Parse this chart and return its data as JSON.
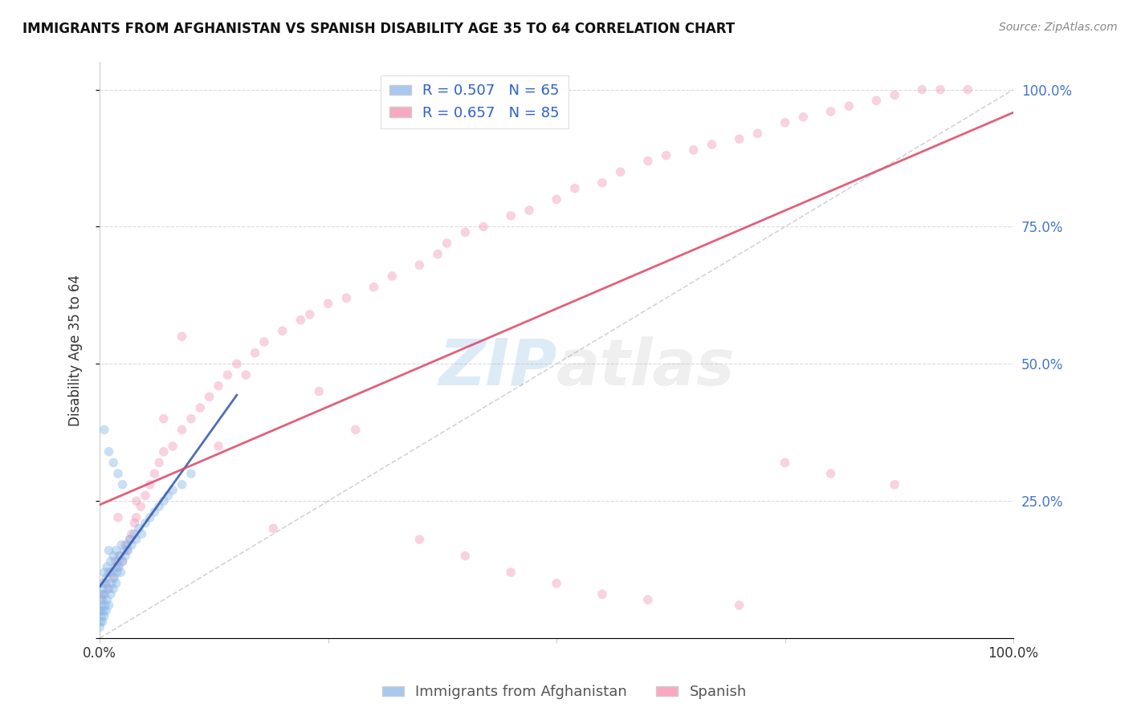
{
  "title": "IMMIGRANTS FROM AFGHANISTAN VS SPANISH DISABILITY AGE 35 TO 64 CORRELATION CHART",
  "source": "Source: ZipAtlas.com",
  "ylabel": "Disability Age 35 to 64",
  "legend_entries": [
    {
      "label": "R = 0.507   N = 65",
      "color": "#a8c8f0"
    },
    {
      "label": "R = 0.657   N = 85",
      "color": "#f9a8c0"
    }
  ],
  "legend_bottom": [
    "Immigrants from Afghanistan",
    "Spanish"
  ],
  "watermark": "ZIPatlas",
  "background_color": "#ffffff",
  "grid_color": "#cccccc",
  "scatter_afghanistan": {
    "color": "#88b8e8",
    "alpha": 0.45,
    "size": 70
  },
  "scatter_spanish": {
    "color": "#f090b0",
    "alpha": 0.4,
    "size": 70
  },
  "trend_afghanistan": {
    "color": "#3355aa",
    "style": "-",
    "alpha": 0.85,
    "linewidth": 2.0
  },
  "trend_spanish": {
    "color": "#dd4466",
    "style": "-",
    "alpha": 0.85,
    "linewidth": 2.0
  },
  "trend_diagonal": {
    "color": "#aaaaaa",
    "style": "--",
    "alpha": 0.5,
    "linewidth": 1.2
  },
  "R_afg": 0.507,
  "N_afg": 65,
  "R_spa": 0.657,
  "N_spa": 85,
  "xmin": 0.0,
  "xmax": 1.0,
  "ymin": 0.0,
  "ymax": 1.05,
  "afg_x": [
    0.0,
    0.001,
    0.001,
    0.002,
    0.002,
    0.002,
    0.003,
    0.003,
    0.003,
    0.004,
    0.004,
    0.005,
    0.005,
    0.005,
    0.006,
    0.006,
    0.007,
    0.007,
    0.008,
    0.008,
    0.009,
    0.01,
    0.01,
    0.01,
    0.012,
    0.012,
    0.013,
    0.014,
    0.015,
    0.015,
    0.016,
    0.017,
    0.018,
    0.018,
    0.019,
    0.02,
    0.021,
    0.022,
    0.023,
    0.024,
    0.025,
    0.027,
    0.028,
    0.03,
    0.031,
    0.033,
    0.035,
    0.038,
    0.04,
    0.043,
    0.046,
    0.05,
    0.055,
    0.06,
    0.065,
    0.07,
    0.075,
    0.08,
    0.09,
    0.1,
    0.005,
    0.01,
    0.015,
    0.02,
    0.025
  ],
  "afg_y": [
    0.02,
    0.03,
    0.05,
    0.04,
    0.06,
    0.08,
    0.03,
    0.07,
    0.1,
    0.05,
    0.09,
    0.04,
    0.08,
    0.12,
    0.06,
    0.1,
    0.05,
    0.11,
    0.07,
    0.13,
    0.09,
    0.06,
    0.12,
    0.16,
    0.08,
    0.14,
    0.1,
    0.12,
    0.09,
    0.15,
    0.11,
    0.13,
    0.1,
    0.16,
    0.12,
    0.14,
    0.13,
    0.15,
    0.12,
    0.17,
    0.14,
    0.16,
    0.15,
    0.17,
    0.16,
    0.18,
    0.17,
    0.19,
    0.18,
    0.2,
    0.19,
    0.21,
    0.22,
    0.23,
    0.24,
    0.25,
    0.26,
    0.27,
    0.28,
    0.3,
    0.38,
    0.34,
    0.32,
    0.3,
    0.28
  ],
  "spa_x": [
    0.0,
    0.002,
    0.005,
    0.007,
    0.01,
    0.012,
    0.015,
    0.017,
    0.02,
    0.022,
    0.025,
    0.028,
    0.03,
    0.033,
    0.035,
    0.038,
    0.04,
    0.045,
    0.05,
    0.055,
    0.06,
    0.065,
    0.07,
    0.08,
    0.09,
    0.1,
    0.11,
    0.12,
    0.13,
    0.14,
    0.15,
    0.17,
    0.18,
    0.2,
    0.22,
    0.23,
    0.25,
    0.27,
    0.3,
    0.32,
    0.35,
    0.37,
    0.38,
    0.4,
    0.42,
    0.45,
    0.47,
    0.5,
    0.52,
    0.55,
    0.57,
    0.6,
    0.62,
    0.65,
    0.67,
    0.7,
    0.72,
    0.75,
    0.77,
    0.8,
    0.82,
    0.85,
    0.87,
    0.9,
    0.92,
    0.95,
    0.02,
    0.04,
    0.07,
    0.09,
    0.13,
    0.16,
    0.19,
    0.24,
    0.28,
    0.35,
    0.4,
    0.45,
    0.5,
    0.55,
    0.6,
    0.7,
    0.75,
    0.8,
    0.87
  ],
  "spa_y": [
    0.05,
    0.07,
    0.08,
    0.1,
    0.09,
    0.12,
    0.11,
    0.14,
    0.13,
    0.15,
    0.14,
    0.17,
    0.16,
    0.18,
    0.19,
    0.21,
    0.22,
    0.24,
    0.26,
    0.28,
    0.3,
    0.32,
    0.34,
    0.35,
    0.38,
    0.4,
    0.42,
    0.44,
    0.46,
    0.48,
    0.5,
    0.52,
    0.54,
    0.56,
    0.58,
    0.59,
    0.61,
    0.62,
    0.64,
    0.66,
    0.68,
    0.7,
    0.72,
    0.74,
    0.75,
    0.77,
    0.78,
    0.8,
    0.82,
    0.83,
    0.85,
    0.87,
    0.88,
    0.89,
    0.9,
    0.91,
    0.92,
    0.94,
    0.95,
    0.96,
    0.97,
    0.98,
    0.99,
    1.0,
    1.0,
    1.0,
    0.22,
    0.25,
    0.4,
    0.55,
    0.35,
    0.48,
    0.2,
    0.45,
    0.38,
    0.18,
    0.15,
    0.12,
    0.1,
    0.08,
    0.07,
    0.06,
    0.32,
    0.3,
    0.28
  ]
}
